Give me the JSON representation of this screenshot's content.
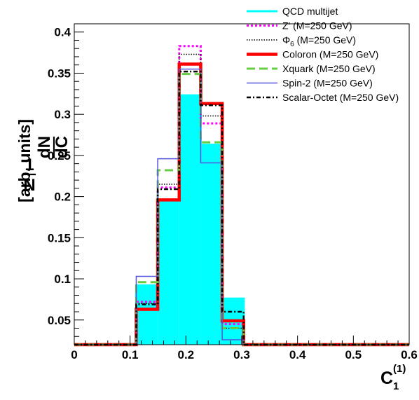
{
  "chart_data": {
    "type": "line",
    "xlabel": "C",
    "xlabel_sub": "1",
    "xlabel_sup": "(1)",
    "ylabel": {
      "frac_num_1": "1",
      "frac_den_1": "N",
      "frac_num_2": "dN",
      "frac_den_2": "dC",
      "units": "[arb. units]"
    },
    "xlim": [
      0,
      0.6
    ],
    "ylim": [
      0.02,
      0.41
    ],
    "x_ticks": [
      0,
      0.1,
      0.2,
      0.3,
      0.4,
      0.5,
      0.6
    ],
    "x_tick_labels": [
      "0",
      "0.1",
      "0.2",
      "0.3",
      "0.4",
      "0.5",
      "0.6"
    ],
    "y_ticks": [
      0.05,
      0.1,
      0.15,
      0.2,
      0.25,
      0.3,
      0.35,
      0.4
    ],
    "y_tick_labels": [
      "0.05",
      "0.1",
      "0.15",
      "0.2",
      "0.25",
      "0.3",
      "0.35",
      "0.4"
    ],
    "bin_edges": [
      0,
      0.111,
      0.1495,
      0.188,
      0.2265,
      0.265,
      0.3035,
      0.6
    ],
    "series": [
      {
        "name": "QCD multijet",
        "style": "filled",
        "color": "#00ffff",
        "values": [
          0.02,
          0.092,
          0.196,
          0.323,
          0.263,
          0.076,
          0.02
        ]
      },
      {
        "name": "Z' (M=250 GeV)",
        "style": "dotted-thick",
        "color": "#ff00ff",
        "values": [
          0.02,
          0.072,
          0.211,
          0.383,
          0.289,
          0.045,
          0.02
        ]
      },
      {
        "name": "Φ6 (M=250 GeV)",
        "style": "dotted-thin",
        "color": "#000000",
        "values": [
          0.02,
          0.07,
          0.215,
          0.373,
          0.298,
          0.04,
          0.02
        ]
      },
      {
        "name": "Coloron (M=250 GeV)",
        "style": "solid-thick",
        "color": "#ff0000",
        "values": [
          0.02,
          0.063,
          0.196,
          0.361,
          0.313,
          0.049,
          0.02
        ]
      },
      {
        "name": "Xquark (M=250 GeV)",
        "style": "dashed",
        "color": "#66cc44",
        "values": [
          0.02,
          0.096,
          0.232,
          0.349,
          0.266,
          0.04,
          0.02
        ]
      },
      {
        "name": "Spin-2 (M=250 GeV)",
        "style": "solid-thin",
        "color": "#5555dd",
        "values": [
          0.02,
          0.103,
          0.246,
          0.355,
          0.241,
          0.026,
          0.02
        ]
      },
      {
        "name": "Scalar-Octet (M=250 GeV)",
        "style": "dash-dot",
        "color": "#000000",
        "values": [
          0.02,
          0.069,
          0.209,
          0.352,
          0.311,
          0.06,
          0.02
        ]
      }
    ],
    "legend_position": "top-right",
    "grid": false
  }
}
